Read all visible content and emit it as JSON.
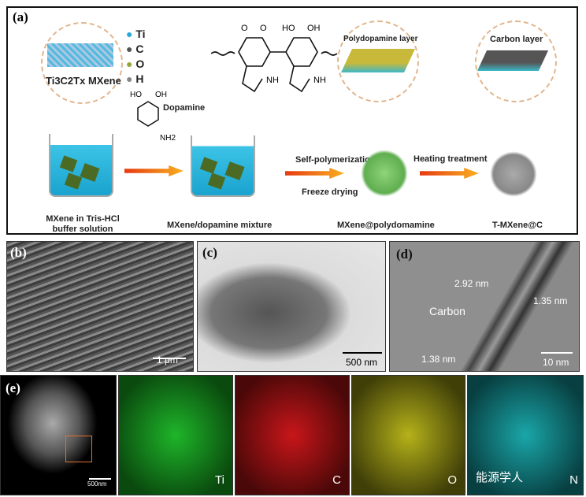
{
  "panels": {
    "a": "(a)",
    "b": "(b)",
    "c": "(c)",
    "d": "(d)",
    "e": "(e)"
  },
  "legend": [
    "Ti",
    "C",
    "O",
    "H"
  ],
  "legend_colors": [
    "#29a9d6",
    "#555555",
    "#9aa33a",
    "#888888"
  ],
  "mxene_label": "Ti3C2Tx MXene",
  "dopamine": {
    "label": "Dopamine",
    "ho": "HO",
    "oh": "OH",
    "nh2": "NH2"
  },
  "structure": {
    "o1": "O",
    "o2": "O",
    "ho": "HO",
    "oh": "OH",
    "nh1": "NH",
    "nh2": "NH"
  },
  "zoom_labels": {
    "pda": "Polydopamine layer",
    "carbon": "Carbon layer"
  },
  "steps": {
    "s1": "Self-polymerization",
    "s2": "Freeze drying",
    "s3": "Heating treatment"
  },
  "captions": {
    "c1": "MXene in Tris-HCl buffer solution",
    "c2": "MXene/dopamine mixture",
    "c3": "MXene@polydomamine",
    "c4": "T-MXene@C"
  },
  "b": {
    "scale": "1 μm"
  },
  "c": {
    "scale": "500 nm"
  },
  "d": {
    "scale": "10 nm",
    "d1": "2.92 nm",
    "d2": "1.35 nm",
    "d3": "1.38 nm",
    "carbon": "Carbon"
  },
  "e": {
    "scale": "500nm",
    "maps": [
      {
        "el": "Ti",
        "color": "#1fb52a"
      },
      {
        "el": "C",
        "color": "#c8161a"
      },
      {
        "el": "O",
        "color": "#b5b21a"
      },
      {
        "el": "N",
        "color": "#1aa6a8"
      }
    ],
    "watermark": "能源学人"
  }
}
